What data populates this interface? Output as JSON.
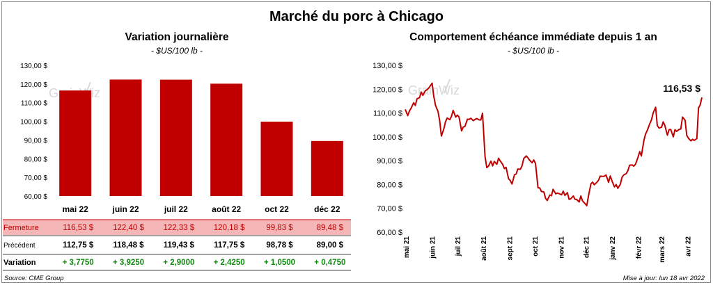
{
  "title": "Marché du porc à Chicago",
  "watermark": "GrainWiz",
  "source": "Source: CME Group",
  "updated": "Mise à jour: lun 18 avr 2022",
  "colors": {
    "bar": "#c00000",
    "line": "#c00000",
    "fermeture_bg": "#f4b6b6",
    "positive": "#118a11"
  },
  "chart_data": [
    {
      "type": "bar",
      "title": "Variation journalière",
      "unit_label": "- $US/100 lb -",
      "categories": [
        "mai 22",
        "juin 22",
        "juil 22",
        "août 22",
        "oct 22",
        "déc 22"
      ],
      "values": [
        116.53,
        122.4,
        122.33,
        120.18,
        99.83,
        89.48
      ],
      "ylim": [
        60,
        130
      ],
      "yticks": [
        60,
        70,
        80,
        90,
        100,
        110,
        120,
        130
      ],
      "ytick_labels": [
        "60,00 $",
        "70,00 $",
        "80,00 $",
        "90,00 $",
        "100,00 $",
        "110,00 $",
        "120,00 $",
        "130,00 $"
      ],
      "grid": false,
      "table": {
        "rows": [
          {
            "label": "Fermeture",
            "values": [
              "116,53  $",
              "122,40  $",
              "122,33  $",
              "120,18  $",
              "99,83  $",
              "89,48  $"
            ]
          },
          {
            "label": "Précédent",
            "values": [
              "112,75  $",
              "118,48  $",
              "119,43  $",
              "117,75  $",
              "98,78  $",
              "89,00  $"
            ]
          },
          {
            "label": "Variation",
            "values": [
              "+ 3,7750",
              "+ 3,9250",
              "+ 2,9000",
              "+ 2,4250",
              "+ 1,0500",
              "+ 0,4750"
            ]
          }
        ]
      }
    },
    {
      "type": "line",
      "title": "Comportement  échéance immédiate depuis 1 an",
      "unit_label": "- $US/100 lb -",
      "ylim": [
        60,
        130
      ],
      "yticks": [
        60,
        70,
        80,
        90,
        100,
        110,
        120,
        130
      ],
      "ytick_labels": [
        "60,00 $",
        "70,00 $",
        "80,00 $",
        "90,00 $",
        "100,00 $",
        "110,00 $",
        "120,00 $",
        "130,00 $"
      ],
      "xticks": [
        "mai 21",
        "juin 21",
        "juil 21",
        "août 21",
        "sept 21",
        "oct 21",
        "nov 21",
        "déc 21",
        "janv 22",
        "févr 22",
        "mars 22",
        "avr 22"
      ],
      "last_label": "116,53 $",
      "grid": false,
      "series": [
        {
          "x": [
            "2021-04-30",
            "2021-05-03",
            "2021-05-05",
            "2021-05-07",
            "2021-05-10",
            "2021-05-12",
            "2021-05-14",
            "2021-05-17",
            "2021-05-19",
            "2021-05-21",
            "2021-05-24",
            "2021-05-26",
            "2021-05-28",
            "2021-06-01",
            "2021-06-03",
            "2021-06-05",
            "2021-06-08",
            "2021-06-10",
            "2021-06-12",
            "2021-06-15",
            "2021-06-17",
            "2021-06-19",
            "2021-06-22",
            "2021-06-24",
            "2021-06-26",
            "2021-06-29",
            "2021-07-01",
            "2021-07-03",
            "2021-07-06",
            "2021-07-08",
            "2021-07-10",
            "2021-07-13",
            "2021-07-15",
            "2021-07-17",
            "2021-07-20",
            "2021-07-22",
            "2021-07-24",
            "2021-07-27",
            "2021-07-29",
            "2021-07-31",
            "2021-08-03",
            "2021-08-05",
            "2021-08-07",
            "2021-08-10",
            "2021-08-12",
            "2021-08-14",
            "2021-08-17",
            "2021-08-19",
            "2021-08-21",
            "2021-08-24",
            "2021-08-26",
            "2021-08-28",
            "2021-08-31",
            "2021-09-02",
            "2021-09-04",
            "2021-09-07",
            "2021-09-09",
            "2021-09-11",
            "2021-09-14",
            "2021-09-16",
            "2021-09-18",
            "2021-09-21",
            "2021-09-23",
            "2021-09-25",
            "2021-09-28",
            "2021-09-30",
            "2021-10-02",
            "2021-10-05",
            "2021-10-07",
            "2021-10-09",
            "2021-10-12",
            "2021-10-14",
            "2021-10-16",
            "2021-10-19",
            "2021-10-21",
            "2021-10-23",
            "2021-10-26",
            "2021-10-28",
            "2021-10-30",
            "2021-11-02",
            "2021-11-04",
            "2021-11-06",
            "2021-11-09",
            "2021-11-11",
            "2021-11-13",
            "2021-11-16",
            "2021-11-18",
            "2021-11-20",
            "2021-11-23",
            "2021-11-25",
            "2021-11-27",
            "2021-11-30",
            "2021-12-02",
            "2021-12-04",
            "2021-12-07",
            "2021-12-09",
            "2021-12-11",
            "2021-12-14",
            "2021-12-16",
            "2021-12-18",
            "2021-12-21",
            "2021-12-23",
            "2021-12-25",
            "2021-12-28",
            "2021-12-30",
            "2022-01-01",
            "2022-01-04",
            "2022-01-06",
            "2022-01-08",
            "2022-01-11",
            "2022-01-13",
            "2022-01-15",
            "2022-01-18",
            "2022-01-20",
            "2022-01-22",
            "2022-01-25",
            "2022-01-27",
            "2022-01-29",
            "2022-02-01",
            "2022-02-03",
            "2022-02-05",
            "2022-02-08",
            "2022-02-10",
            "2022-02-12",
            "2022-02-15",
            "2022-02-17",
            "2022-02-19",
            "2022-02-22",
            "2022-02-24",
            "2022-02-26",
            "2022-03-01",
            "2022-03-03",
            "2022-03-05",
            "2022-03-08",
            "2022-03-10",
            "2022-03-12",
            "2022-03-15",
            "2022-03-17",
            "2022-03-19",
            "2022-03-22",
            "2022-03-24",
            "2022-03-26",
            "2022-03-29",
            "2022-03-31",
            "2022-04-02",
            "2022-04-05",
            "2022-04-07",
            "2022-04-09",
            "2022-04-12",
            "2022-04-14",
            "2022-04-16",
            "2022-04-18"
          ],
          "y": [
            111.5,
            108.9,
            110.8,
            112.0,
            114.3,
            113.2,
            116.0,
            116.4,
            118.8,
            117.4,
            119.4,
            119.8,
            120.5,
            122.5,
            117.0,
            113.3,
            110.6,
            106.7,
            100.3,
            103.4,
            106.4,
            107.9,
            107.2,
            108.6,
            111.1,
            108.3,
            109.1,
            108.4,
            102.5,
            104.1,
            104.4,
            107.4,
            107.3,
            107.8,
            106.8,
            107.3,
            107.7,
            107.1,
            107.1,
            109.9,
            91.8,
            87.1,
            87.7,
            89.8,
            87.8,
            89.7,
            88.5,
            91.0,
            89.9,
            88.4,
            86.7,
            87.2,
            82.4,
            81.7,
            80.2,
            84.1,
            84.4,
            86.5,
            86.4,
            87.8,
            90.9,
            92.0,
            91.2,
            90.2,
            89.1,
            90.3,
            88.8,
            78.6,
            78.6,
            77.1,
            76.9,
            74.2,
            73.3,
            75.6,
            75.3,
            78.0,
            76.1,
            76.4,
            76.2,
            75.7,
            77.2,
            75.4,
            76.6,
            73.8,
            74.0,
            75.2,
            73.8,
            73.7,
            72.7,
            75.2,
            73.1,
            72.0,
            71.1,
            75.1,
            80.3,
            81.0,
            79.9,
            80.9,
            81.8,
            83.5,
            83.4,
            83.5,
            84.0,
            80.9,
            83.6,
            81.5,
            79.0,
            80.0,
            78.4,
            80.1,
            83.1,
            84.0,
            84.6,
            85.8,
            88.1,
            88.2,
            87.7,
            88.5,
            91.4,
            93.8,
            92.0,
            98.4,
            101.1,
            102.7,
            105.5,
            107.1,
            110.0,
            112.4,
            104.7,
            103.7,
            104.0,
            106.3,
            104.7,
            100.7,
            103.0,
            103.1,
            100.0,
            103.0,
            102.3,
            103.1,
            103.3,
            108.3,
            107.0,
            100.6,
            99.4,
            98.3,
            99.0,
            98.5,
            99.3,
            112.1,
            113.4,
            116.53
          ]
        }
      ]
    }
  ]
}
